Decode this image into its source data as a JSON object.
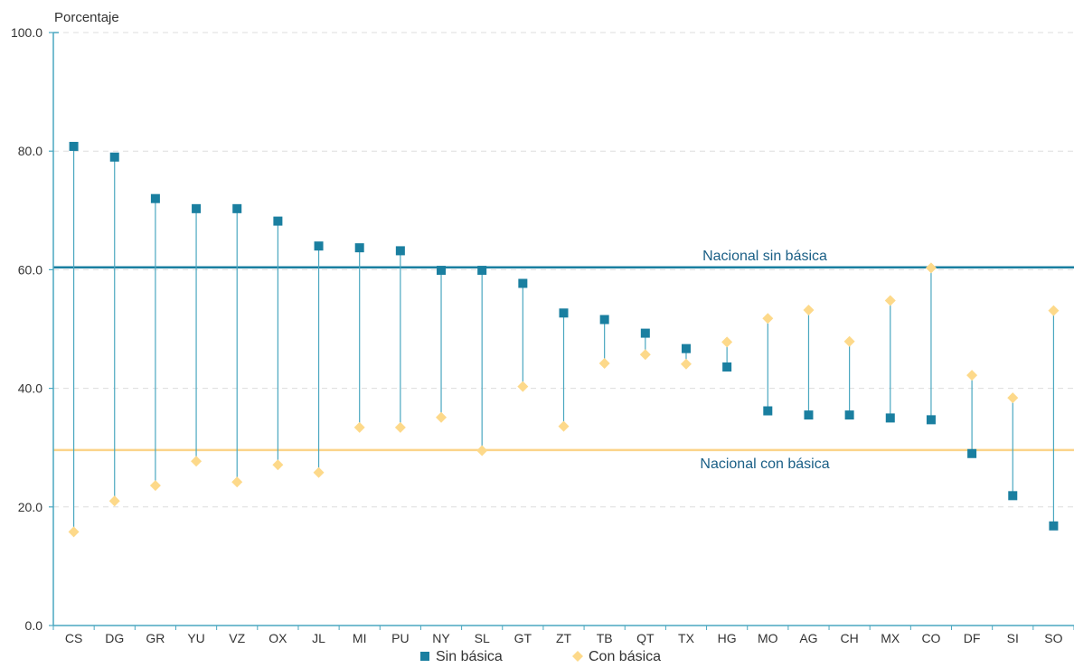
{
  "chart_data": {
    "type": "scatter",
    "ylabel": "Porcentaje",
    "xlabel": "",
    "ylim": [
      0,
      100
    ],
    "yticks": [
      "0.0",
      "20.0",
      "40.0",
      "60.0",
      "80.0",
      "100.0"
    ],
    "grid": "horizontal-dashed",
    "legend_position": "bottom-center",
    "categories": [
      "CS",
      "DG",
      "GR",
      "YU",
      "VZ",
      "OX",
      "JL",
      "MI",
      "PU",
      "NY",
      "SL",
      "GT",
      "ZT",
      "TB",
      "QT",
      "TX",
      "HG",
      "MO",
      "AG",
      "CH",
      "MX",
      "CO",
      "DF",
      "SI",
      "SO"
    ],
    "series": [
      {
        "name": "Sin básica",
        "marker": "square",
        "color": "#1a7fa0",
        "values": [
          80.8,
          79.0,
          72.0,
          70.3,
          70.3,
          68.2,
          64.0,
          63.7,
          63.2,
          59.9,
          59.9,
          57.7,
          52.7,
          51.6,
          49.3,
          46.7,
          43.6,
          36.2,
          35.5,
          35.5,
          35.0,
          34.7,
          29.0,
          21.9,
          16.8
        ]
      },
      {
        "name": "Con básica",
        "marker": "diamond",
        "color": "#fdd98a",
        "values": [
          15.8,
          21.0,
          23.6,
          27.7,
          24.2,
          27.1,
          25.8,
          33.4,
          33.4,
          35.1,
          29.5,
          40.3,
          33.6,
          44.2,
          45.7,
          44.1,
          47.8,
          51.8,
          53.2,
          47.9,
          54.8,
          60.3,
          42.2,
          38.4,
          53.1
        ]
      }
    ],
    "reference_lines": [
      {
        "label": "Nacional sin básica",
        "value": 60.4,
        "color": "#1a7fa0"
      },
      {
        "label": "Nacional con básica",
        "value": 29.6,
        "color": "#fbd48a"
      }
    ],
    "colors": {
      "axis": "#4aa7c0",
      "stem": "#4aa7c0",
      "grid": "#dddddd",
      "ref_sin_text": "#1a5f86",
      "ref_con_text": "#1a5f86"
    }
  }
}
